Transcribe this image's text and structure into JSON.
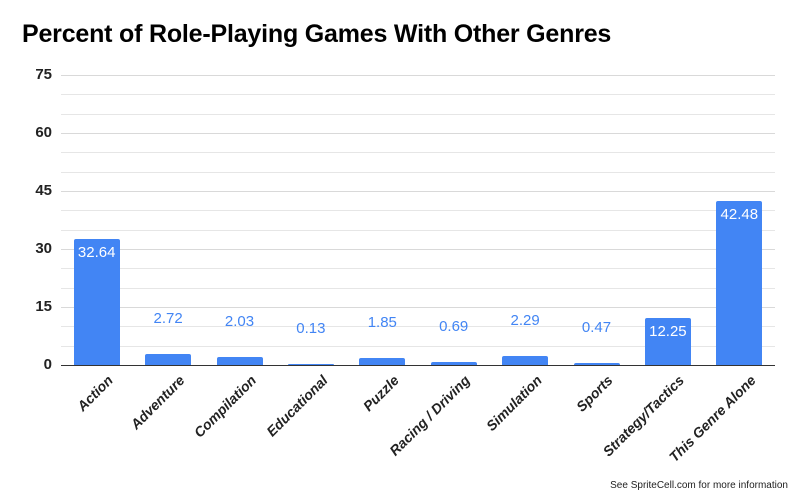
{
  "chart_data": {
    "type": "bar",
    "title": "Percent of Role-Playing Games With Other Genres",
    "xlabel": "",
    "ylabel": "",
    "ylim": [
      0,
      75
    ],
    "yticks": [
      0,
      15,
      30,
      45,
      60,
      75
    ],
    "grid": true,
    "minor_grid_step": 5,
    "legend": "none",
    "bar_color": "#4285f4",
    "categories": [
      "Action",
      "Adventure",
      "Compilation",
      "Educational",
      "Puzzle",
      "Racing / Driving",
      "Simulation",
      "Sports",
      "Strategy/Tactics",
      "This Genre Alone"
    ],
    "values": [
      32.64,
      2.72,
      2.03,
      0.13,
      1.85,
      0.69,
      2.29,
      0.47,
      12.25,
      42.48
    ],
    "value_labels": [
      "32.64",
      "2.72",
      "2.03",
      "0.13",
      "1.85",
      "0.69",
      "2.29",
      "0.47",
      "12.25",
      "42.48"
    ]
  },
  "footer": "See SpriteCell.com for more information"
}
